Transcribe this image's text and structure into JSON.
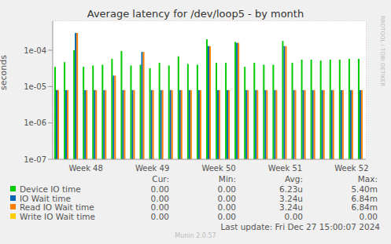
{
  "chart_data": {
    "type": "bar",
    "title": "Average latency for /dev/loop5 - by month",
    "y_label": "seconds",
    "side_text": "RRDTOOL / TOBI OETIKER",
    "footer": "Last update: Fri Dec 27 15:00:07 2024",
    "credit": "Munin 2.0.57",
    "log": "y",
    "grid": true,
    "categories": [
      null,
      null,
      null,
      "Week 48",
      null,
      null,
      null,
      null,
      null,
      null,
      "Week 49",
      null,
      null,
      null,
      null,
      null,
      null,
      "Week 50",
      null,
      null,
      null,
      null,
      null,
      null,
      "Week 51",
      null,
      null,
      null,
      null,
      null,
      null,
      "Week 52",
      null
    ],
    "ylim": [
      1e-07,
      0.00063
    ],
    "yticks": [
      {
        "value": 1e-07,
        "label": "1e-07"
      },
      {
        "value": 1e-06,
        "label": "1e-06"
      },
      {
        "value": 1e-05,
        "label": "1e-05"
      },
      {
        "value": 0.0001,
        "label": "1e-04"
      }
    ],
    "series": [
      {
        "name": "Device IO time",
        "color": "#00cc00",
        "values": [
          3.5e-05,
          4.7e-05,
          0.0001,
          3.5e-05,
          3.8e-05,
          4e-05,
          5.8e-05,
          9.5e-05,
          3.8e-05,
          4e-05,
          3.2e-05,
          4.5e-05,
          3.8e-05,
          6.8e-05,
          4.2e-05,
          4e-05,
          0.0002,
          4.5e-05,
          4.5e-05,
          0.00017,
          3.5e-05,
          4.5e-05,
          4e-05,
          4e-05,
          0.00018,
          4.5e-05,
          5.5e-05,
          5.5e-05,
          5.2e-05,
          5.5e-05,
          5.5e-05,
          5.8e-05,
          5.8e-05
        ]
      },
      {
        "name": "IO Wait time",
        "color": "#0066b3",
        "values": [
          8e-06,
          8e-06,
          0.0003,
          8e-06,
          8e-06,
          8e-06,
          2e-05,
          8e-06,
          8e-06,
          9e-05,
          8e-06,
          8e-06,
          8e-06,
          8e-06,
          8e-06,
          8e-06,
          0.00013,
          8e-06,
          8e-06,
          0.00016,
          8e-06,
          8e-06,
          8e-06,
          8e-06,
          0.00013,
          8e-06,
          8e-06,
          8e-06,
          8e-06,
          8e-06,
          8e-06,
          8e-06,
          8e-06
        ]
      },
      {
        "name": "Read IO Wait time",
        "color": "#ff8000",
        "values": [
          8e-06,
          8e-06,
          0.0003,
          8e-06,
          8e-06,
          8e-06,
          2e-05,
          8e-06,
          8e-06,
          9e-05,
          8e-06,
          8e-06,
          8e-06,
          8e-06,
          8e-06,
          8e-06,
          0.00013,
          8e-06,
          8e-06,
          0.00016,
          8e-06,
          8e-06,
          8e-06,
          8e-06,
          0.00013,
          8e-06,
          8e-06,
          8e-06,
          8e-06,
          8e-06,
          8e-06,
          8e-06,
          8e-06
        ]
      },
      {
        "name": "Write IO Wait time",
        "color": "#ffcc00",
        "values": [
          null,
          null,
          null,
          null,
          null,
          null,
          null,
          null,
          null,
          null,
          null,
          null,
          null,
          null,
          null,
          null,
          null,
          null,
          null,
          null,
          null,
          null,
          null,
          null,
          null,
          null,
          null,
          null,
          null,
          null,
          null,
          null,
          null
        ]
      }
    ],
    "legend_table": {
      "columns": [
        "Cur:",
        "Min:",
        "Avg:",
        "Max:"
      ],
      "rows": [
        {
          "name": "Device IO time",
          "values": [
            "0.00",
            "0.00",
            "6.23u",
            "5.40m"
          ]
        },
        {
          "name": "IO Wait time",
          "values": [
            "0.00",
            "0.00",
            "3.24u",
            "6.84m"
          ]
        },
        {
          "name": "Read IO Wait time",
          "values": [
            "0.00",
            "0.00",
            "3.24u",
            "6.84m"
          ]
        },
        {
          "name": "Write IO Wait time",
          "values": [
            "0.00",
            "0.00",
            "0.00",
            "0.00"
          ]
        }
      ]
    }
  }
}
